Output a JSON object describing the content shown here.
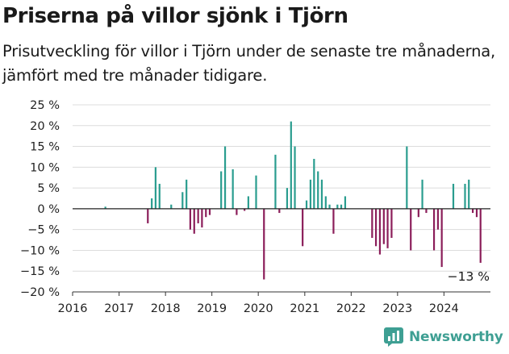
{
  "title": "Priserna på villor sjönk i Tjörn",
  "subtitle": "Prisutveckling för villor i Tjörn under de senaste tre månaderna, jämfört med tre månader tidigare.",
  "brand": "Newsworthy",
  "colors": {
    "positive": "#2a9d8f",
    "negative": "#8b1e5a",
    "grid": "#dcdcdc",
    "axis": "#333333",
    "brand": "#3e9f93"
  },
  "chart_data": {
    "type": "bar",
    "x_unit": "date",
    "ylim": [
      -20,
      25
    ],
    "xlim": [
      "2016-01-01",
      "2025-01-01"
    ],
    "y_ticks": [
      25,
      20,
      15,
      10,
      5,
      0,
      -5,
      -10,
      -15,
      -20
    ],
    "y_tick_labels": [
      "25 %",
      "20 %",
      "15 %",
      "10 %",
      "5 %",
      "0 %",
      "−5 %",
      "−10 %",
      "−15 %",
      "−20 %"
    ],
    "x_ticks": [
      "2016-01-01",
      "2017-01-01",
      "2018-01-01",
      "2019-01-01",
      "2020-01-01",
      "2021-01-01",
      "2022-01-01",
      "2023-01-01",
      "2024-01-01"
    ],
    "x_tick_labels": [
      "2016",
      "2017",
      "2018",
      "2019",
      "2020",
      "2021",
      "2022",
      "2023",
      "2024"
    ],
    "grid": true,
    "annotation": {
      "text": "−13 %",
      "date": "2024-09-15",
      "value": -13
    },
    "points": [
      {
        "date": "2016-09-15",
        "value": 0.5
      },
      {
        "date": "2017-08-15",
        "value": -3.5
      },
      {
        "date": "2017-09-15",
        "value": 2.5
      },
      {
        "date": "2017-10-15",
        "value": 10
      },
      {
        "date": "2017-11-15",
        "value": 6
      },
      {
        "date": "2018-02-15",
        "value": 1
      },
      {
        "date": "2018-05-15",
        "value": 4
      },
      {
        "date": "2018-06-15",
        "value": 7
      },
      {
        "date": "2018-07-15",
        "value": -5
      },
      {
        "date": "2018-08-15",
        "value": -6
      },
      {
        "date": "2018-09-15",
        "value": -3.5
      },
      {
        "date": "2018-10-15",
        "value": -4.5
      },
      {
        "date": "2018-11-15",
        "value": -2
      },
      {
        "date": "2018-12-15",
        "value": -1.5
      },
      {
        "date": "2019-03-15",
        "value": 9
      },
      {
        "date": "2019-04-15",
        "value": 15
      },
      {
        "date": "2019-06-15",
        "value": 9.5
      },
      {
        "date": "2019-07-15",
        "value": -1.5
      },
      {
        "date": "2019-09-15",
        "value": -0.5
      },
      {
        "date": "2019-10-15",
        "value": 3
      },
      {
        "date": "2019-12-15",
        "value": 8
      },
      {
        "date": "2020-02-15",
        "value": -17
      },
      {
        "date": "2020-05-15",
        "value": 13
      },
      {
        "date": "2020-06-15",
        "value": -1
      },
      {
        "date": "2020-08-15",
        "value": 5
      },
      {
        "date": "2020-09-15",
        "value": 21
      },
      {
        "date": "2020-10-15",
        "value": 15
      },
      {
        "date": "2020-12-15",
        "value": -9
      },
      {
        "date": "2021-01-15",
        "value": 2
      },
      {
        "date": "2021-02-15",
        "value": 7
      },
      {
        "date": "2021-03-15",
        "value": 12
      },
      {
        "date": "2021-04-15",
        "value": 9
      },
      {
        "date": "2021-05-15",
        "value": 7
      },
      {
        "date": "2021-06-15",
        "value": 3
      },
      {
        "date": "2021-07-15",
        "value": 1
      },
      {
        "date": "2021-08-15",
        "value": -6
      },
      {
        "date": "2021-09-15",
        "value": 1
      },
      {
        "date": "2021-10-15",
        "value": 1
      },
      {
        "date": "2021-11-15",
        "value": 3
      },
      {
        "date": "2022-06-15",
        "value": -7
      },
      {
        "date": "2022-07-15",
        "value": -9
      },
      {
        "date": "2022-08-15",
        "value": -11
      },
      {
        "date": "2022-09-15",
        "value": -8.5
      },
      {
        "date": "2022-10-15",
        "value": -9.5
      },
      {
        "date": "2022-11-15",
        "value": -7
      },
      {
        "date": "2023-03-15",
        "value": 15
      },
      {
        "date": "2023-04-15",
        "value": -10
      },
      {
        "date": "2023-06-15",
        "value": -2
      },
      {
        "date": "2023-07-15",
        "value": 7
      },
      {
        "date": "2023-08-15",
        "value": -1
      },
      {
        "date": "2023-10-15",
        "value": -10
      },
      {
        "date": "2023-11-15",
        "value": -5
      },
      {
        "date": "2023-12-15",
        "value": -14
      },
      {
        "date": "2024-03-15",
        "value": 6
      },
      {
        "date": "2024-06-15",
        "value": 6
      },
      {
        "date": "2024-07-15",
        "value": 7
      },
      {
        "date": "2024-08-15",
        "value": -1
      },
      {
        "date": "2024-09-15",
        "value": -2
      },
      {
        "date": "2024-10-15",
        "value": -13
      }
    ]
  }
}
